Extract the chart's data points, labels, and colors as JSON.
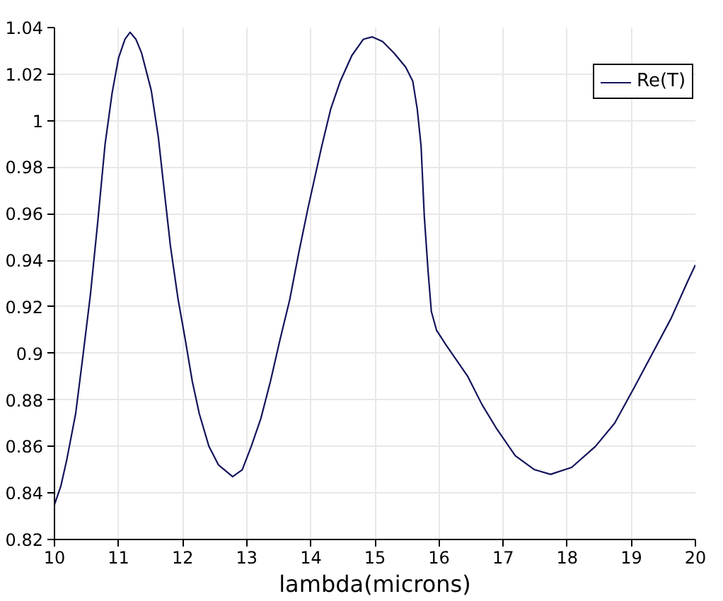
{
  "chart_data": {
    "type": "line",
    "xlabel": "lambda(microns)",
    "x": [
      10.0,
      10.1,
      10.19,
      10.33,
      10.44,
      10.56,
      10.67,
      10.79,
      10.9,
      11.0,
      11.1,
      11.18,
      11.27,
      11.36,
      11.51,
      11.62,
      11.7,
      11.81,
      11.93,
      12.04,
      12.15,
      12.26,
      12.41,
      12.56,
      12.78,
      12.93,
      13.07,
      13.22,
      13.37,
      13.52,
      13.67,
      13.81,
      13.96,
      14.17,
      14.31,
      14.46,
      14.64,
      14.82,
      14.96,
      15.12,
      15.3,
      15.48,
      15.59,
      15.66,
      15.72,
      15.77,
      15.83,
      15.88,
      15.96,
      16.1,
      16.25,
      16.45,
      16.67,
      16.89,
      17.19,
      17.49,
      17.74,
      18.07,
      18.44,
      18.74,
      19.04,
      19.33,
      19.62,
      19.88,
      20.0
    ],
    "series": [
      {
        "name": "Re(T)",
        "color": "#14145c",
        "values": [
          0.835,
          0.843,
          0.854,
          0.874,
          0.898,
          0.925,
          0.955,
          0.99,
          1.012,
          1.027,
          1.035,
          1.038,
          1.035,
          1.029,
          1.013,
          0.993,
          0.973,
          0.946,
          0.923,
          0.906,
          0.888,
          0.874,
          0.86,
          0.852,
          0.847,
          0.85,
          0.86,
          0.872,
          0.888,
          0.906,
          0.923,
          0.943,
          0.963,
          0.989,
          1.005,
          1.017,
          1.028,
          1.035,
          1.036,
          1.034,
          1.029,
          1.023,
          1.017,
          1.005,
          0.989,
          0.959,
          0.935,
          0.918,
          0.91,
          0.904,
          0.898,
          0.89,
          0.878,
          0.868,
          0.856,
          0.85,
          0.848,
          0.851,
          0.86,
          0.87,
          0.885,
          0.9,
          0.915,
          0.931,
          0.938
        ]
      }
    ],
    "xlim": [
      10,
      20
    ],
    "ylim": [
      0.82,
      1.04
    ],
    "xticks": [
      10,
      11,
      12,
      13,
      14,
      15,
      16,
      17,
      18,
      19,
      20
    ],
    "yticks": [
      0.82,
      0.84,
      0.86,
      0.88,
      0.9,
      0.92,
      0.94,
      0.96,
      0.98,
      1,
      1.02,
      1.04
    ],
    "grid": true,
    "legend": "top right"
  }
}
